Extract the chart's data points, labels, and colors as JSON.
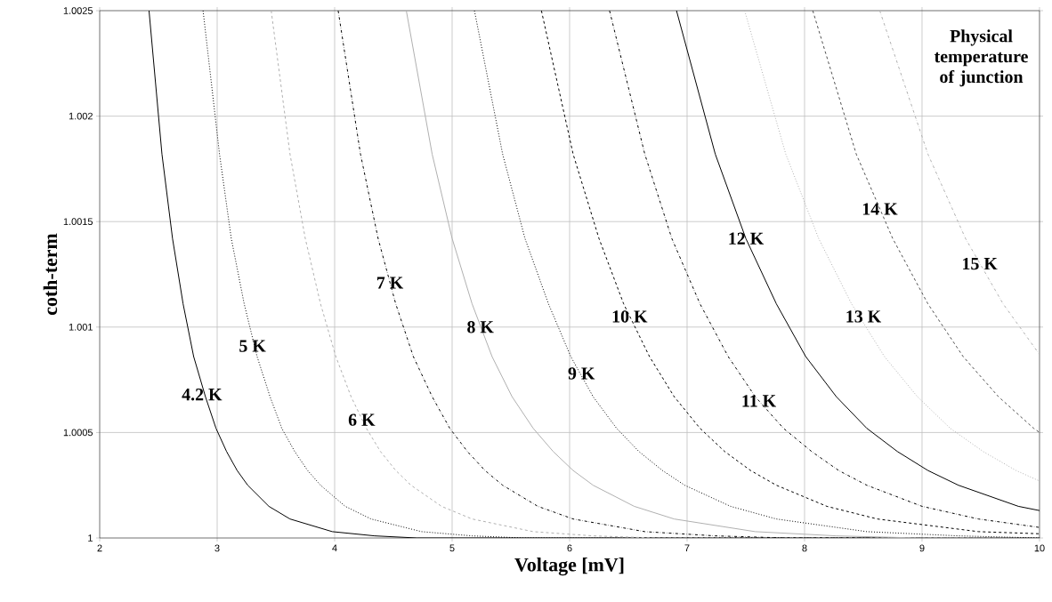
{
  "chart_data": {
    "type": "line",
    "xlabel": "Voltage [mV]",
    "ylabel": "coth-term",
    "xlim": [
      2,
      10
    ],
    "ylim": [
      1,
      1.0025
    ],
    "xticks": [
      2,
      3,
      4,
      5,
      6,
      7,
      8,
      9,
      10
    ],
    "yticks": [
      1,
      1.0005,
      1.001,
      1.0015,
      1.002,
      1.0025
    ],
    "grid": true,
    "series": [
      {
        "color": "#000000",
        "line_style": "solid",
        "x": [
          2.42,
          2.53,
          2.62,
          2.71,
          2.8,
          2.9,
          2.99,
          3.08,
          3.17,
          3.26,
          3.44,
          3.62,
          3.98,
          4.34,
          4.7,
          5.07,
          10
        ],
        "values": [
          1.0025,
          1.00182,
          1.00142,
          1.00111,
          1.00086,
          1.00067,
          1.00052,
          1.00041,
          1.00032,
          1.00025,
          1.00015,
          1.00009,
          1.00003,
          1.00001,
          1.0,
          1.0,
          1.0
        ]
      },
      {
        "color": "#000000",
        "line_style": "dotted",
        "x": [
          2.88,
          3.02,
          3.12,
          3.23,
          3.34,
          3.45,
          3.55,
          3.66,
          3.77,
          3.88,
          4.09,
          4.31,
          4.74,
          5.17,
          5.6,
          6.03,
          10
        ],
        "values": [
          1.0025,
          1.00182,
          1.00142,
          1.00111,
          1.00086,
          1.00067,
          1.00052,
          1.00041,
          1.00032,
          1.00025,
          1.00015,
          1.00009,
          1.00003,
          1.00001,
          1.0,
          1.0,
          1.0
        ]
      },
      {
        "color": "#b0b0b0",
        "line_style": "dashed",
        "x": [
          3.46,
          3.62,
          3.75,
          3.88,
          4.01,
          4.14,
          4.27,
          4.39,
          4.52,
          4.65,
          4.91,
          5.17,
          5.69,
          6.2,
          6.72,
          7.24,
          10
        ],
        "values": [
          1.0025,
          1.00182,
          1.00142,
          1.00111,
          1.00086,
          1.00067,
          1.00052,
          1.00041,
          1.00032,
          1.00025,
          1.00015,
          1.00009,
          1.00003,
          1.00001,
          1.0,
          1.0,
          1.0
        ]
      },
      {
        "color": "#000000",
        "line_style": "dashdot",
        "x": [
          4.03,
          4.22,
          4.37,
          4.52,
          4.67,
          4.83,
          4.98,
          5.13,
          5.28,
          5.43,
          5.73,
          6.03,
          6.64,
          7.24,
          7.84,
          8.44,
          10
        ],
        "values": [
          1.0025,
          1.00182,
          1.00142,
          1.00111,
          1.00086,
          1.00067,
          1.00052,
          1.00041,
          1.00032,
          1.00025,
          1.00015,
          1.00009,
          1.00003,
          1.00001,
          1.0,
          1.0,
          1.0
        ]
      },
      {
        "color": "#b0b0b0",
        "line_style": "solid",
        "x": [
          4.61,
          4.83,
          5.0,
          5.17,
          5.34,
          5.51,
          5.69,
          5.86,
          6.03,
          6.2,
          6.55,
          6.89,
          7.58,
          8.27,
          8.96,
          9.65,
          10
        ],
        "values": [
          1.0025,
          1.00182,
          1.00142,
          1.00111,
          1.00086,
          1.00067,
          1.00052,
          1.00041,
          1.00032,
          1.00025,
          1.00015,
          1.00009,
          1.00003,
          1.00001,
          1.0,
          1.0,
          1.0
        ]
      },
      {
        "color": "#000000",
        "line_style": "dotted",
        "x": [
          5.19,
          5.43,
          5.62,
          5.82,
          6.01,
          6.2,
          6.4,
          6.59,
          6.79,
          6.98,
          7.37,
          7.76,
          8.53,
          9.31,
          10
        ],
        "values": [
          1.0025,
          1.00182,
          1.00142,
          1.00111,
          1.00086,
          1.00067,
          1.00052,
          1.00041,
          1.00032,
          1.00025,
          1.00015,
          1.00009,
          1.00003,
          1.00001,
          1.0
        ]
      },
      {
        "color": "#000000",
        "line_style": "dashed",
        "x": [
          5.76,
          6.03,
          6.25,
          6.46,
          6.68,
          6.89,
          7.11,
          7.32,
          7.54,
          7.76,
          8.19,
          8.62,
          9.48,
          10
        ],
        "values": [
          1.0025,
          1.00182,
          1.00142,
          1.00111,
          1.00086,
          1.00067,
          1.00052,
          1.00041,
          1.00032,
          1.00025,
          1.00015,
          1.00009,
          1.00003,
          1.00002
        ]
      },
      {
        "color": "#000000",
        "line_style": "dashdot",
        "x": [
          6.34,
          6.64,
          6.87,
          7.11,
          7.35,
          7.58,
          7.82,
          8.06,
          8.29,
          8.53,
          9.0,
          9.48,
          10
        ],
        "values": [
          1.0025,
          1.00182,
          1.00142,
          1.00111,
          1.00086,
          1.00067,
          1.00052,
          1.00041,
          1.00032,
          1.00025,
          1.00015,
          1.00009,
          1.00005
        ]
      },
      {
        "color": "#000000",
        "line_style": "solid",
        "x": [
          6.91,
          7.24,
          7.5,
          7.76,
          8.01,
          8.27,
          8.53,
          8.79,
          9.05,
          9.31,
          9.82,
          10
        ],
        "values": [
          1.0025,
          1.00182,
          1.00142,
          1.00111,
          1.00086,
          1.00067,
          1.00052,
          1.00041,
          1.00032,
          1.00025,
          1.00015,
          1.00013
        ]
      },
      {
        "color": "#b0b0b0",
        "line_style": "dotted",
        "x": [
          7.49,
          7.84,
          8.12,
          8.4,
          8.68,
          8.96,
          9.24,
          9.52,
          9.8,
          10
        ],
        "values": [
          1.0025,
          1.00182,
          1.00142,
          1.00111,
          1.00086,
          1.00067,
          1.00052,
          1.00041,
          1.00032,
          1.00027
        ]
      },
      {
        "color": "#505050",
        "line_style": "dashed",
        "x": [
          8.07,
          8.44,
          8.75,
          9.05,
          9.35,
          9.65,
          9.95,
          10
        ],
        "values": [
          1.0025,
          1.00182,
          1.00142,
          1.00111,
          1.00086,
          1.00067,
          1.00052,
          1.0005
        ]
      },
      {
        "color": "#b0b0b0",
        "line_style": "dashdot",
        "x": [
          8.64,
          9.05,
          9.37,
          9.69,
          10
        ],
        "values": [
          1.0025,
          1.00182,
          1.00142,
          1.00111,
          1.00087
        ]
      }
    ],
    "annotations": [
      {
        "text": "4.2 K",
        "x": 2.87,
        "y": 1.00068
      },
      {
        "text": "5 K",
        "x": 3.3,
        "y": 1.00091
      },
      {
        "text": "6 K",
        "x": 4.23,
        "y": 1.00056
      },
      {
        "text": "7 K",
        "x": 4.47,
        "y": 1.00121
      },
      {
        "text": "8 K",
        "x": 5.24,
        "y": 1.001
      },
      {
        "text": "9 K",
        "x": 6.1,
        "y": 1.00078
      },
      {
        "text": "10 K",
        "x": 6.51,
        "y": 1.00105
      },
      {
        "text": "11 K",
        "x": 7.61,
        "y": 1.00065
      },
      {
        "text": "12 K",
        "x": 7.5,
        "y": 1.00142
      },
      {
        "text": "13 K",
        "x": 8.5,
        "y": 1.00105
      },
      {
        "text": "14 K",
        "x": 8.64,
        "y": 1.00156
      },
      {
        "text": "15 K",
        "x": 9.49,
        "y": 1.0013
      },
      "Physical temperature of junction"
    ]
  }
}
